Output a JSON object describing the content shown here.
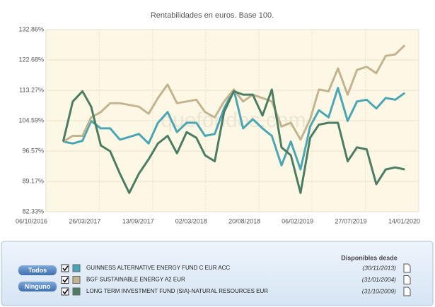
{
  "chart_data": {
    "type": "line",
    "title": "Rentabilidades en euros. Base 100.",
    "watermark": "quefondos.com",
    "yscale": "log",
    "grid": true,
    "ylim": [
      82.33,
      132.86
    ],
    "yticks": [
      {
        "value": 82.33,
        "label": "82.33%"
      },
      {
        "value": 89.17,
        "label": "89.17%"
      },
      {
        "value": 96.57,
        "label": "96.57%"
      },
      {
        "value": 104.59,
        "label": "104.59%"
      },
      {
        "value": 113.27,
        "label": "113.27%"
      },
      {
        "value": 122.68,
        "label": "122.68%"
      },
      {
        "value": 132.86,
        "label": "132.86%"
      }
    ],
    "xlim": [
      "06/10/2016",
      "14/01/2020"
    ],
    "xticks": [
      "06/10/2016",
      "26/03/2017",
      "13/09/2017",
      "02/03/2018",
      "20/08/2018",
      "06/02/2019",
      "27/07/2019",
      "14/01/2020"
    ],
    "x": [
      "30/11/2016",
      "31/12/2016",
      "31/01/2017",
      "28/02/2017",
      "31/03/2017",
      "30/04/2017",
      "31/05/2017",
      "30/06/2017",
      "31/07/2017",
      "31/08/2017",
      "30/09/2017",
      "31/10/2017",
      "30/11/2017",
      "31/12/2017",
      "31/01/2018",
      "28/02/2018",
      "31/03/2018",
      "30/04/2018",
      "31/05/2018",
      "30/06/2018",
      "31/07/2018",
      "31/08/2018",
      "30/09/2018",
      "31/10/2018",
      "30/11/2018",
      "31/12/2018",
      "31/01/2019",
      "28/02/2019",
      "31/03/2019",
      "30/04/2019",
      "31/05/2019",
      "30/06/2019",
      "31/07/2019",
      "31/08/2019",
      "30/09/2019",
      "31/10/2019",
      "30/11/2019"
    ],
    "series": [
      {
        "name": "GUINNESS ALTERNATIVE ENERGY FUND C EUR ACC",
        "color": "#4aa6b5",
        "values": [
          99,
          98.5,
          99.2,
          104.5,
          102.5,
          102.5,
          99.5,
          100.2,
          101,
          98.5,
          104,
          107,
          101.5,
          104,
          104,
          100.5,
          101,
          108,
          113.5,
          102.5,
          105,
          102.5,
          100.5,
          93,
          99,
          92,
          103,
          107.5,
          105.5,
          114,
          104.5,
          110,
          110.5,
          108,
          111,
          110.5,
          112.5
        ]
      },
      {
        "name": "BGF SUSTAINABLE ENERGY A2 EUR",
        "color": "#c2b48e",
        "values": [
          99,
          100.5,
          100.5,
          105.5,
          107,
          109.5,
          109.5,
          109,
          108.5,
          106.5,
          111,
          115,
          109.5,
          110,
          110.5,
          107,
          105.5,
          110,
          113.5,
          110,
          112,
          111,
          110,
          103,
          104,
          99.5,
          105,
          113.5,
          113,
          120,
          112,
          119.5,
          120.5,
          118.5,
          124,
          124.5,
          127.5
        ]
      },
      {
        "name": "LONG TERM INVESTMENT FUND (SIA)-NATURAL RESOURCES EUR",
        "color": "#4a7d62",
        "values": [
          99,
          110,
          113,
          108.5,
          98,
          96.5,
          91,
          86.5,
          91,
          94.5,
          98.5,
          100.5,
          96,
          101.5,
          100,
          95.5,
          94,
          107,
          113,
          112,
          112,
          106,
          113.5,
          97.5,
          95.5,
          86.5,
          100,
          103.5,
          104,
          104,
          94,
          97.5,
          97,
          88.5,
          92,
          92.5,
          92
        ]
      }
    ]
  },
  "legend_panel": {
    "buttons": [
      "Todos",
      "Ninguno"
    ],
    "header": "Disponibles desde",
    "dates": [
      "(30/11/2013)",
      "(31/01/2004)",
      "(31/10/2009)"
    ]
  }
}
